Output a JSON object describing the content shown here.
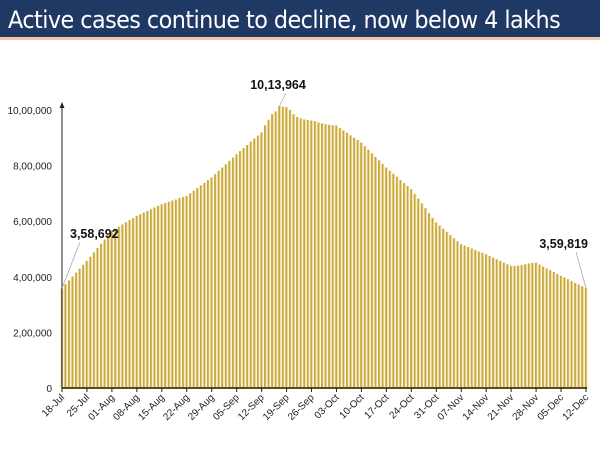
{
  "title": "Active cases continue to decline, now below 4 lakhs",
  "chart_data": {
    "type": "bar",
    "title": "Active cases continue to decline, now below 4 lakhs",
    "xlabel": "",
    "ylabel": "",
    "ylim": [
      0,
      1000000
    ],
    "grid": false,
    "bar_color": "#c9a83e",
    "y_ticks": [
      0,
      200000,
      400000,
      600000,
      800000,
      1000000
    ],
    "y_tick_labels": [
      "0",
      "2,00,000",
      "4,00,000",
      "6,00,000",
      "8,00,000",
      "10,00,000"
    ],
    "x_start": "18-Jul",
    "x_end": "12-Dec",
    "x_tick_labels": [
      "18-Jul",
      "25-Jul",
      "01-Aug",
      "08-Aug",
      "15-Aug",
      "22-Aug",
      "29-Aug",
      "05-Sep",
      "12-Sep",
      "19-Sep",
      "26-Sep",
      "03-Oct",
      "10-Oct",
      "17-Oct",
      "24-Oct",
      "31-Oct",
      "07-Nov",
      "14-Nov",
      "21-Nov",
      "28-Nov",
      "05-Dec",
      "12-Dec"
    ],
    "x_tick_every_days": 7,
    "values": [
      358692,
      373000,
      387000,
      401000,
      415000,
      429000,
      443000,
      457000,
      472000,
      488000,
      503000,
      519000,
      534000,
      549000,
      565000,
      573000,
      580000,
      588000,
      596000,
      604000,
      611000,
      619000,
      625000,
      631000,
      637000,
      643000,
      649000,
      655000,
      661000,
      665000,
      670000,
      674000,
      678000,
      683000,
      687000,
      691000,
      700000,
      710000,
      719000,
      729000,
      738000,
      748000,
      757000,
      769000,
      781000,
      793000,
      805000,
      817000,
      829000,
      841000,
      852000,
      863000,
      874000,
      886000,
      897000,
      908000,
      919000,
      945000,
      965000,
      985000,
      995000,
      1013964,
      1012000,
      1010000,
      1000000,
      985000,
      975000,
      970000,
      966000,
      964000,
      962000,
      960000,
      955000,
      952000,
      949000,
      947000,
      945000,
      944000,
      935000,
      926000,
      918000,
      909000,
      900000,
      892000,
      883000,
      870000,
      857000,
      844000,
      831000,
      819000,
      806000,
      793000,
      782000,
      771000,
      760000,
      748000,
      737000,
      726000,
      715000,
      698000,
      681000,
      664000,
      647000,
      629000,
      612000,
      595000,
      584000,
      573000,
      562000,
      550000,
      539000,
      528000,
      517000,
      512000,
      507000,
      502000,
      496000,
      491000,
      486000,
      481000,
      475000,
      469000,
      463000,
      457000,
      451000,
      445000,
      439000,
      439000,
      440000,
      442000,
      445000,
      448000,
      450000,
      451000,
      444000,
      437000,
      430000,
      424000,
      417000,
      410000,
      403000,
      397000,
      391000,
      385000,
      378000,
      372000,
      366000,
      359819
    ],
    "annotations": [
      {
        "label": "3,58,692",
        "value": 358692,
        "date": "18-Jul"
      },
      {
        "label": "10,13,964",
        "value": 1013964,
        "date": "17-Sep"
      },
      {
        "label": "3,59,819",
        "value": 359819,
        "date": "12-Dec"
      }
    ]
  }
}
